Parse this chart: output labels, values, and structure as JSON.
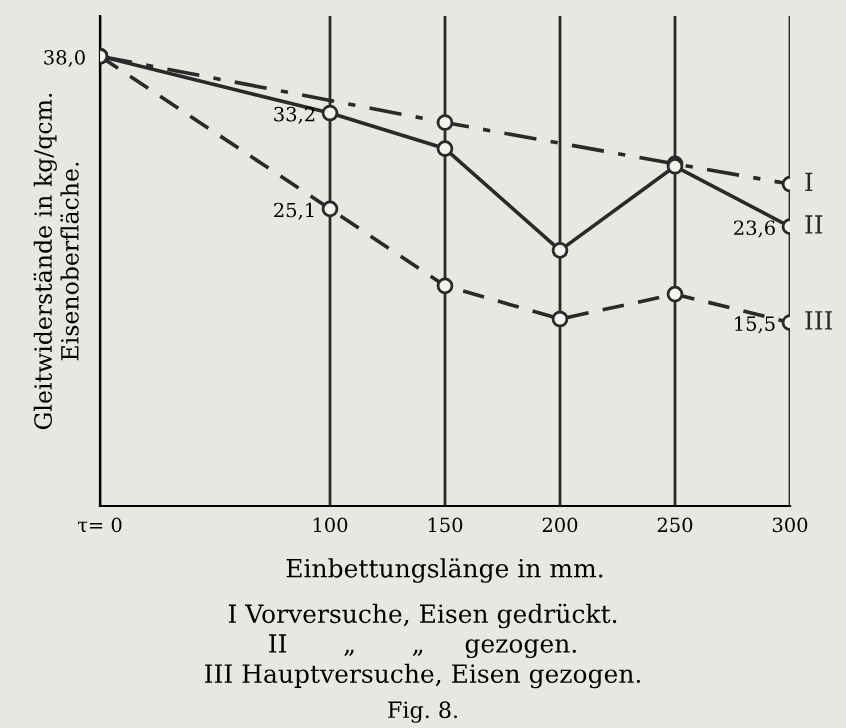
{
  "chart_data": {
    "type": "line",
    "x": [
      0,
      100,
      150,
      200,
      250,
      300
    ],
    "series": [
      {
        "name": "I",
        "color": "#2a2a2a",
        "line_style": "dashdot",
        "x": [
          0,
          150,
          250,
          300
        ],
        "values": [
          38.0,
          32.4,
          28.9,
          27.2
        ]
      },
      {
        "name": "II",
        "color": "#2a2a2a",
        "line_style": "solid",
        "values": [
          38.0,
          33.2,
          30.2,
          21.6,
          28.7,
          23.6
        ],
        "value_labels": [
          "38,0",
          "33,2",
          null,
          null,
          null,
          "23,6"
        ]
      },
      {
        "name": "III",
        "color": "#2a2a2a",
        "line_style": "dashed",
        "values": [
          38.0,
          25.1,
          18.6,
          15.8,
          17.9,
          15.5
        ],
        "value_labels": [
          null,
          "25,1",
          null,
          null,
          null,
          "15,5"
        ]
      }
    ],
    "xlim": [
      0,
      300
    ],
    "xticks": [
      {
        "value": 0,
        "label": "τ= 0"
      },
      100,
      150,
      200,
      250,
      300
    ],
    "ylim": [
      0,
      41.4
    ],
    "xlabel": "Einbettungslänge in mm.",
    "ylabel": "Gleitwiderstände in kg/qcm.\nEisenoberfläche.",
    "grid": "x",
    "marker": "circle",
    "legend": false,
    "annotations": [
      "I Vorversuche, Eisen gedrückt.",
      "II       „       „     gezogen.",
      "III Hauptversuche, Eisen gezogen.",
      "Fig. 8."
    ]
  }
}
